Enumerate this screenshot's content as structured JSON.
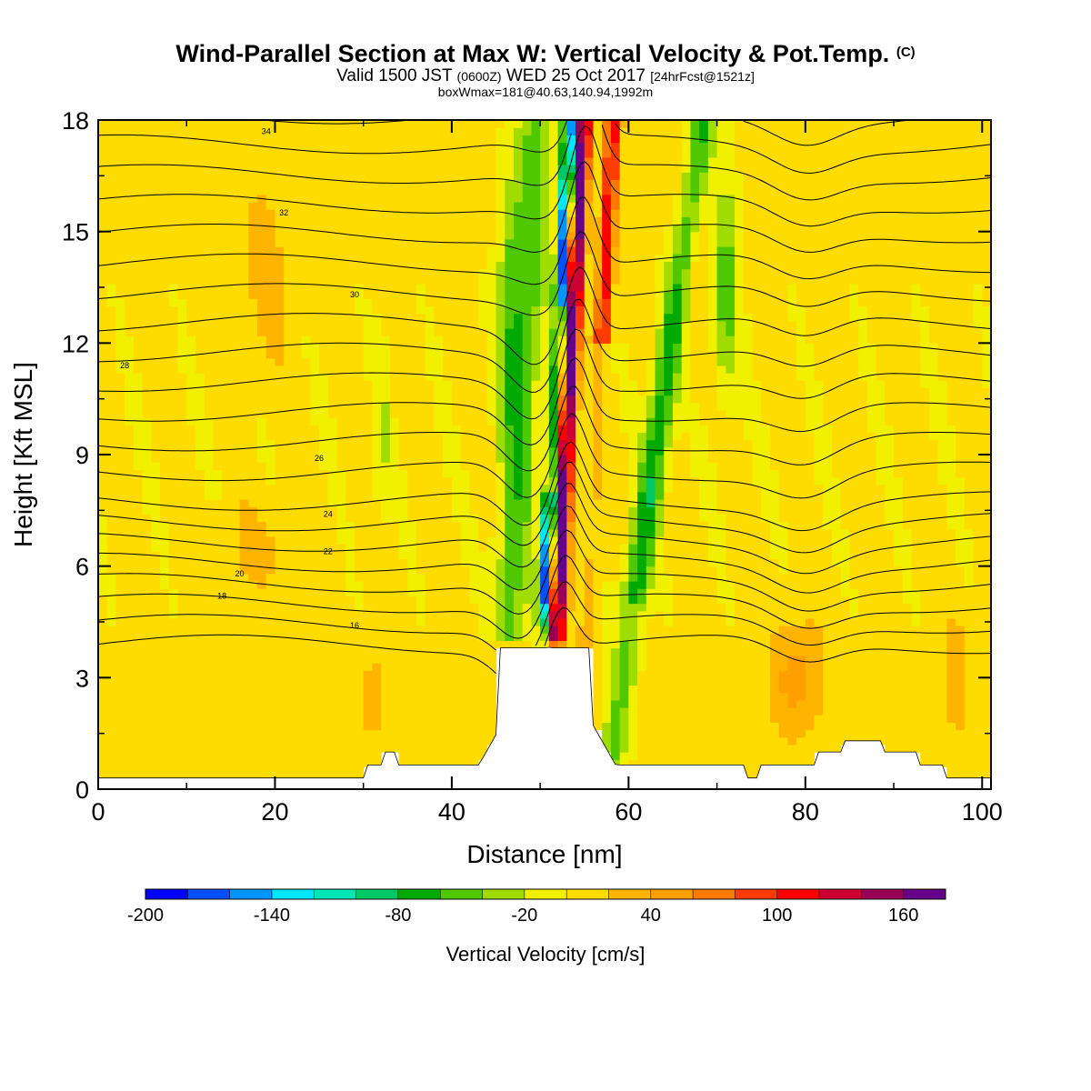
{
  "title": "Wind-Parallel Section at Max W: Vertical Velocity & Pot.Temp.",
  "copyright_mark": "(C)",
  "subtitle": {
    "part1": "Valid 1500 JST",
    "part2": "(0600Z)",
    "part3": "WED 25 Oct 2017",
    "part4": "[24hrFcst@1521z]"
  },
  "subtitle2": "boxWmax=181@40.63,140.94,1992m",
  "chart_data": {
    "type": "heatmap",
    "xlabel": "Distance [nm]",
    "ylabel": "Height [Kft MSL]",
    "xlim": [
      0,
      101
    ],
    "ylim": [
      0,
      18
    ],
    "xticks": [
      0,
      20,
      40,
      60,
      80,
      100
    ],
    "yticks": [
      0,
      3,
      6,
      9,
      12,
      15,
      18
    ],
    "colorbar": {
      "label": "Vertical Velocity [cm/s]",
      "range": [
        -200,
        180
      ],
      "step": 20,
      "tick_labels": [
        -200,
        -140,
        -80,
        -20,
        40,
        100,
        160
      ],
      "colors": [
        "#0000ff",
        "#0050ff",
        "#0096ff",
        "#00e6ff",
        "#00e6b4",
        "#00c864",
        "#00aa00",
        "#50c800",
        "#a0dc00",
        "#f0f000",
        "#ffdc00",
        "#ffb400",
        "#ffa000",
        "#ff7800",
        "#ff3c00",
        "#ff0000",
        "#cc0033",
        "#990055",
        "#660088"
      ]
    },
    "theta_contour_labels": [
      16,
      18,
      20,
      22,
      24,
      26,
      28,
      30,
      32,
      34
    ],
    "max_w": 181
  }
}
